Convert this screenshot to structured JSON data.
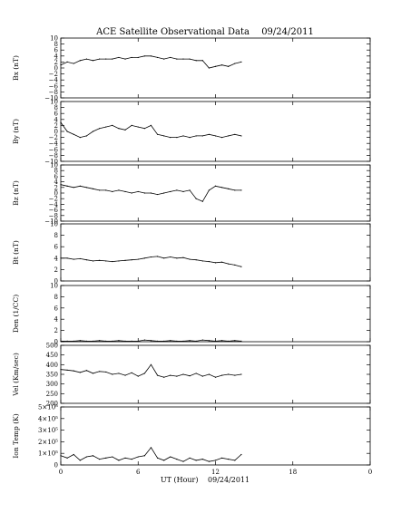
{
  "chart_data": {
    "type": "line",
    "title": "ACE Satellite Observational Data",
    "date": "09/24/2011",
    "xlabel": "UT (Hour)",
    "xlim": [
      0,
      24
    ],
    "xticks": [
      "0",
      "6",
      "12",
      "18",
      "0"
    ],
    "data_end_hour": 14,
    "panels": [
      {
        "name": "Bx",
        "ylabel": "Bx (nT)",
        "ylim": [
          -10,
          10
        ],
        "ytick_values": [
          -10,
          -8,
          -6,
          -4,
          -2,
          0,
          2,
          4,
          6,
          8,
          10
        ],
        "ytick_labels": [
          "−10",
          "−8",
          "−6",
          "−4",
          "−2",
          "0",
          "2",
          "4",
          "6",
          "8",
          "10"
        ],
        "x": [
          0,
          0.5,
          1,
          1.5,
          2,
          2.5,
          3,
          3.5,
          4,
          4.5,
          5,
          5.5,
          6,
          6.5,
          7,
          7.5,
          8,
          8.5,
          9,
          9.5,
          10,
          10.5,
          11,
          11.5,
          12,
          12.5,
          13,
          13.5,
          14
        ],
        "values": [
          1,
          2,
          1.5,
          2.5,
          3,
          2.5,
          3,
          3,
          3,
          3.5,
          3,
          3.5,
          3.5,
          4,
          4,
          3.5,
          3,
          3.5,
          3,
          3,
          3,
          2.5,
          2.5,
          0,
          0.5,
          1,
          0.5,
          1.5,
          2
        ]
      },
      {
        "name": "By",
        "ylabel": "By (nT)",
        "ylim": [
          -10,
          10
        ],
        "ytick_values": [
          -10,
          -8,
          -6,
          -4,
          -2,
          0,
          2,
          4,
          6,
          8,
          10
        ],
        "ytick_labels": [
          "−10",
          "−8",
          "−6",
          "−4",
          "−2",
          "0",
          "2",
          "4",
          "6",
          "8",
          "10"
        ],
        "x": [
          0,
          0.5,
          1,
          1.5,
          2,
          2.5,
          3,
          3.5,
          4,
          4.5,
          5,
          5.5,
          6,
          6.5,
          7,
          7.5,
          8,
          8.5,
          9,
          9.5,
          10,
          10.5,
          11,
          11.5,
          12,
          12.5,
          13,
          13.5,
          14
        ],
        "values": [
          3,
          0,
          -1,
          -2,
          -1.5,
          0,
          1,
          1.5,
          2,
          1,
          0.5,
          2,
          1.5,
          1,
          2,
          -1,
          -1.5,
          -2,
          -2,
          -1.5,
          -2,
          -1.5,
          -1.5,
          -1,
          -1.5,
          -2,
          -1.5,
          -1,
          -1.5
        ]
      },
      {
        "name": "Bz",
        "ylabel": "Bz (nT)",
        "ylim": [
          -10,
          10
        ],
        "ytick_values": [
          -10,
          -8,
          -6,
          -4,
          -2,
          0,
          2,
          4,
          6,
          8,
          10
        ],
        "ytick_labels": [
          "−10",
          "−8",
          "−6",
          "−4",
          "−2",
          "0",
          "2",
          "4",
          "6",
          "8",
          "10"
        ],
        "x": [
          0,
          0.5,
          1,
          1.5,
          2,
          2.5,
          3,
          3.5,
          4,
          4.5,
          5,
          5.5,
          6,
          6.5,
          7,
          7.5,
          8,
          8.5,
          9,
          9.5,
          10,
          10.5,
          11,
          11.5,
          12,
          12.5,
          13,
          13.5,
          14
        ],
        "values": [
          3,
          2.5,
          2,
          2.5,
          2,
          1.5,
          1,
          1,
          0.5,
          1,
          0.5,
          0,
          0.5,
          0,
          0,
          -0.5,
          0,
          0.5,
          1,
          0.5,
          1,
          -2,
          -3,
          1,
          2.5,
          2,
          1.5,
          1,
          1
        ]
      },
      {
        "name": "Bt",
        "ylabel": "Bt (nT)",
        "ylim": [
          0,
          10
        ],
        "ytick_values": [
          0,
          2,
          4,
          6,
          8,
          10
        ],
        "ytick_labels": [
          "0",
          "2",
          "4",
          "6",
          "8",
          "10"
        ],
        "x": [
          0,
          0.5,
          1,
          1.5,
          2,
          2.5,
          3,
          3.5,
          4,
          4.5,
          5,
          5.5,
          6,
          6.5,
          7,
          7.5,
          8,
          8.5,
          9,
          9.5,
          10,
          10.5,
          11,
          11.5,
          12,
          12.5,
          13,
          13.5,
          14
        ],
        "values": [
          4,
          4,
          3.8,
          3.9,
          3.7,
          3.5,
          3.6,
          3.5,
          3.4,
          3.5,
          3.6,
          3.7,
          3.8,
          4,
          4.2,
          4.3,
          4,
          4.2,
          4,
          4.1,
          3.8,
          3.7,
          3.5,
          3.4,
          3.2,
          3.3,
          3,
          2.8,
          2.5
        ]
      },
      {
        "name": "Den",
        "ylabel": "Den (1/CC)",
        "ylim": [
          0,
          10
        ],
        "ytick_values": [
          0,
          2,
          4,
          6,
          8,
          10
        ],
        "ytick_labels": [
          "0",
          "2",
          "4",
          "6",
          "8",
          "10"
        ],
        "x": [
          0,
          0.5,
          1,
          1.5,
          2,
          2.5,
          3,
          3.5,
          4,
          4.5,
          5,
          5.5,
          6,
          6.5,
          7,
          7.5,
          8,
          8.5,
          9,
          9.5,
          10,
          10.5,
          11,
          11.5,
          12,
          12.5,
          13,
          13.5,
          14
        ],
        "values": [
          0.1,
          0.1,
          0.1,
          0.2,
          0.1,
          0.1,
          0.2,
          0.1,
          0.1,
          0.2,
          0.1,
          0.1,
          0.1,
          0.3,
          0.2,
          0.1,
          0.1,
          0.2,
          0.1,
          0.1,
          0.2,
          0.1,
          0.3,
          0.2,
          0.1,
          0.2,
          0.1,
          0.2,
          0.1
        ]
      },
      {
        "name": "Vel",
        "ylabel": "Vel (Km/sec)",
        "ylim": [
          200,
          500
        ],
        "ytick_values": [
          200,
          250,
          300,
          350,
          400,
          450,
          500
        ],
        "ytick_labels": [
          "200",
          "250",
          "300",
          "350",
          "400",
          "450",
          "500"
        ],
        "x": [
          0,
          0.5,
          1,
          1.5,
          2,
          2.5,
          3,
          3.5,
          4,
          4.5,
          5,
          5.5,
          6,
          6.5,
          7,
          7.5,
          8,
          8.5,
          9,
          9.5,
          10,
          10.5,
          11,
          11.5,
          12,
          12.5,
          13,
          13.5,
          14
        ],
        "values": [
          375,
          372,
          368,
          360,
          370,
          355,
          365,
          362,
          350,
          355,
          345,
          358,
          340,
          355,
          400,
          345,
          335,
          345,
          340,
          350,
          342,
          355,
          340,
          350,
          335,
          345,
          350,
          345,
          350
        ]
      },
      {
        "name": "IonTemp",
        "ylabel": "Ion Temp (K)",
        "ylim": [
          0,
          500000
        ],
        "ytick_values": [
          0,
          100000,
          200000,
          300000,
          400000,
          500000
        ],
        "ytick_labels": [
          "0",
          "1×10⁵",
          "2×10⁵",
          "3×10⁵",
          "4×10⁵",
          "5×10⁵"
        ],
        "x": [
          0,
          0.5,
          1,
          1.5,
          2,
          2.5,
          3,
          3.5,
          4,
          4.5,
          5,
          5.5,
          6,
          6.5,
          7,
          7.5,
          8,
          8.5,
          9,
          9.5,
          10,
          10.5,
          11,
          11.5,
          12,
          12.5,
          13,
          13.5,
          14
        ],
        "values": [
          80000,
          60000,
          90000,
          40000,
          70000,
          80000,
          50000,
          60000,
          70000,
          40000,
          60000,
          50000,
          70000,
          80000,
          150000,
          60000,
          40000,
          70000,
          50000,
          30000,
          60000,
          40000,
          50000,
          30000,
          40000,
          60000,
          50000,
          40000,
          90000
        ]
      }
    ]
  }
}
